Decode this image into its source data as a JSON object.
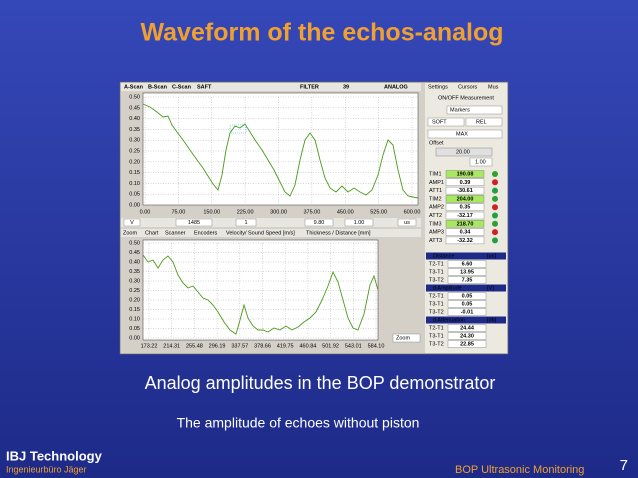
{
  "slide": {
    "title": "Waveform of the echos-analog",
    "caption": "Analog amplitudes in the BOP demonstrator",
    "subcaption": "The amplitude of echoes without piston",
    "footer": {
      "company": "IBJ Technology",
      "subtitle": "Ingenieurbüro Jäger",
      "topic": "BOP Ultrasonic Monitoring",
      "page": "7"
    }
  },
  "screenshot": {
    "toolbar": [
      "A-Scan",
      "B-Scan",
      "C-Scan",
      "SAFT",
      "FILTER",
      "39",
      "ANALOG"
    ],
    "upper_plot": {
      "yticks": [
        "0.50",
        "0.45",
        "0.40",
        "0.35",
        "0.30",
        "0.25",
        "0.20",
        "0.15",
        "0.10",
        "0.05",
        "0.00"
      ],
      "xticks": [
        "0.00",
        "75.00",
        "150.00",
        "225.00",
        "300.00",
        "375.00",
        "450.00",
        "525.00",
        "600.00"
      ]
    },
    "controls": [
      "V",
      "1485",
      "1",
      "9.80",
      "1.00",
      "us"
    ],
    "lower_tabs": [
      "Zoom",
      "Chart",
      "Scanner",
      "Encoders",
      "Velocity/ Sound Speed [m/s]",
      "Thickness / Distance [mm]"
    ],
    "lower_plot": {
      "yticks": [
        "0.50",
        "0.45",
        "0.40",
        "0.35",
        "0.30",
        "0.25",
        "0.20",
        "0.15",
        "0.10",
        "0.05",
        "0.00"
      ],
      "xticks": [
        "173.22",
        "214.31",
        "255.48",
        "296.19",
        "337.57",
        "378.66",
        "419.75",
        "460.84",
        "501.92",
        "543.01",
        "584.10"
      ]
    },
    "zoom_button": "Zoom",
    "panel": {
      "tabs": [
        "Settings",
        "Cursors",
        "Mus"
      ],
      "measurement": "ON/OFF Measurement",
      "markers": "Markers",
      "mode": [
        "SOFT",
        "REL"
      ],
      "max": "MAX",
      "offset_label": "Offset",
      "offset": "20.00",
      "scale": "1.00",
      "cursors": [
        {
          "label": "TIM1",
          "value": "190.08"
        },
        {
          "label": "AMP1",
          "value": "0.39"
        },
        {
          "label": "ATT1",
          "value": "-30.61"
        },
        {
          "label": "TIM2",
          "value": "204.00"
        },
        {
          "label": "AMP2",
          "value": "0.35"
        },
        {
          "label": "ATT2",
          "value": "-32.17"
        },
        {
          "label": "TIM3",
          "value": "218.70"
        },
        {
          "label": "AMP3",
          "value": "0.34"
        },
        {
          "label": "ATT3",
          "value": "-32.32"
        }
      ],
      "sections": [
        {
          "title": "Distance",
          "unit": "[us]",
          "rows": [
            {
              "label": "T2-T1",
              "value": "6.60"
            },
            {
              "label": "T3-T1",
              "value": "13.95"
            },
            {
              "label": "T3-T2",
              "value": "7.35"
            }
          ]
        },
        {
          "title": "d Amplitude",
          "unit": "[V]",
          "rows": [
            {
              "label": "T2-T1",
              "value": "0.05"
            },
            {
              "label": "T3-T1",
              "value": "0.05"
            },
            {
              "label": "T3-T2",
              "value": "-0.01"
            }
          ]
        },
        {
          "title": "d Attenuation",
          "unit": "[db]",
          "rows": [
            {
              "label": "T2-T1",
              "value": "24.44"
            },
            {
              "label": "T3-T1",
              "value": "24.30"
            },
            {
              "label": "T3-T2",
              "value": "22.85"
            }
          ]
        }
      ]
    }
  }
}
